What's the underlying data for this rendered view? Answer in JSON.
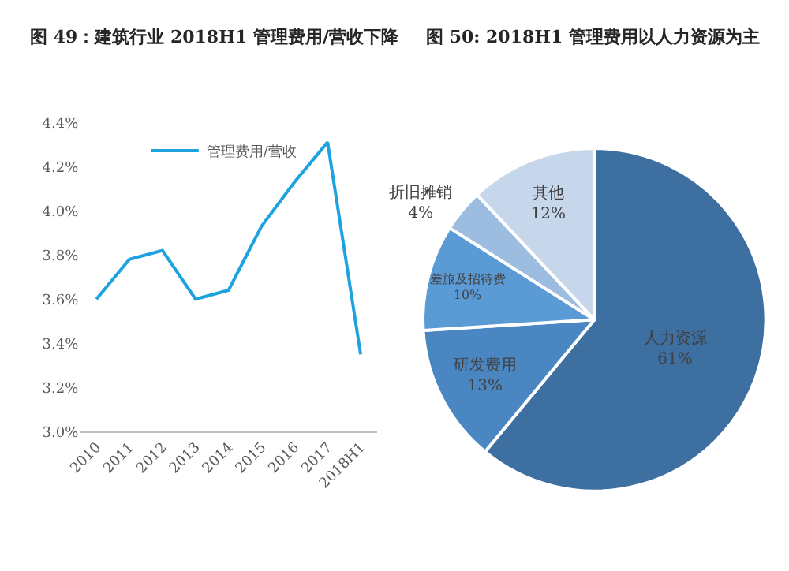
{
  "chart_data": [
    {
      "type": "line",
      "title": "图 49：建筑行业 2018H1 管理费用/营收下降",
      "categories": [
        "2010",
        "2011",
        "2012",
        "2013",
        "2014",
        "2015",
        "2016",
        "2017",
        "2018H1"
      ],
      "series": [
        {
          "name": "管理费用/营收",
          "color": "#1fa3e0",
          "values": [
            3.6,
            3.78,
            3.82,
            3.6,
            3.64,
            3.93,
            4.13,
            4.31,
            3.35
          ]
        }
      ],
      "ylim": [
        3.0,
        4.4
      ],
      "yticks": [
        {
          "value": 3.0,
          "label": "3.0%"
        },
        {
          "value": 3.2,
          "label": "3.2%"
        },
        {
          "value": 3.4,
          "label": "3.4%"
        },
        {
          "value": 3.6,
          "label": "3.6%"
        },
        {
          "value": 3.8,
          "label": "3.8%"
        },
        {
          "value": 4.0,
          "label": "4.0%"
        },
        {
          "value": 4.2,
          "label": "4.2%"
        },
        {
          "value": 4.4,
          "label": "4.4%"
        }
      ],
      "grid": false,
      "legend": "top",
      "marker": "none",
      "line_style": "solid"
    },
    {
      "type": "pie",
      "title": "图 50: 2018H1 管理费用以人力资源为主",
      "categories": [
        "人力资源",
        "研发费用",
        "差旅及招待费",
        "折旧摊销",
        "其他"
      ],
      "values": [
        61,
        13,
        10,
        4,
        12
      ],
      "colors": [
        "#3d6fa0",
        "#4a86c2",
        "#5b9bd5",
        "#9dbde0",
        "#c6d6eb"
      ],
      "value_labels": [
        "61%",
        "13%",
        "10%",
        "4%",
        "12%"
      ],
      "legend": false
    }
  ]
}
